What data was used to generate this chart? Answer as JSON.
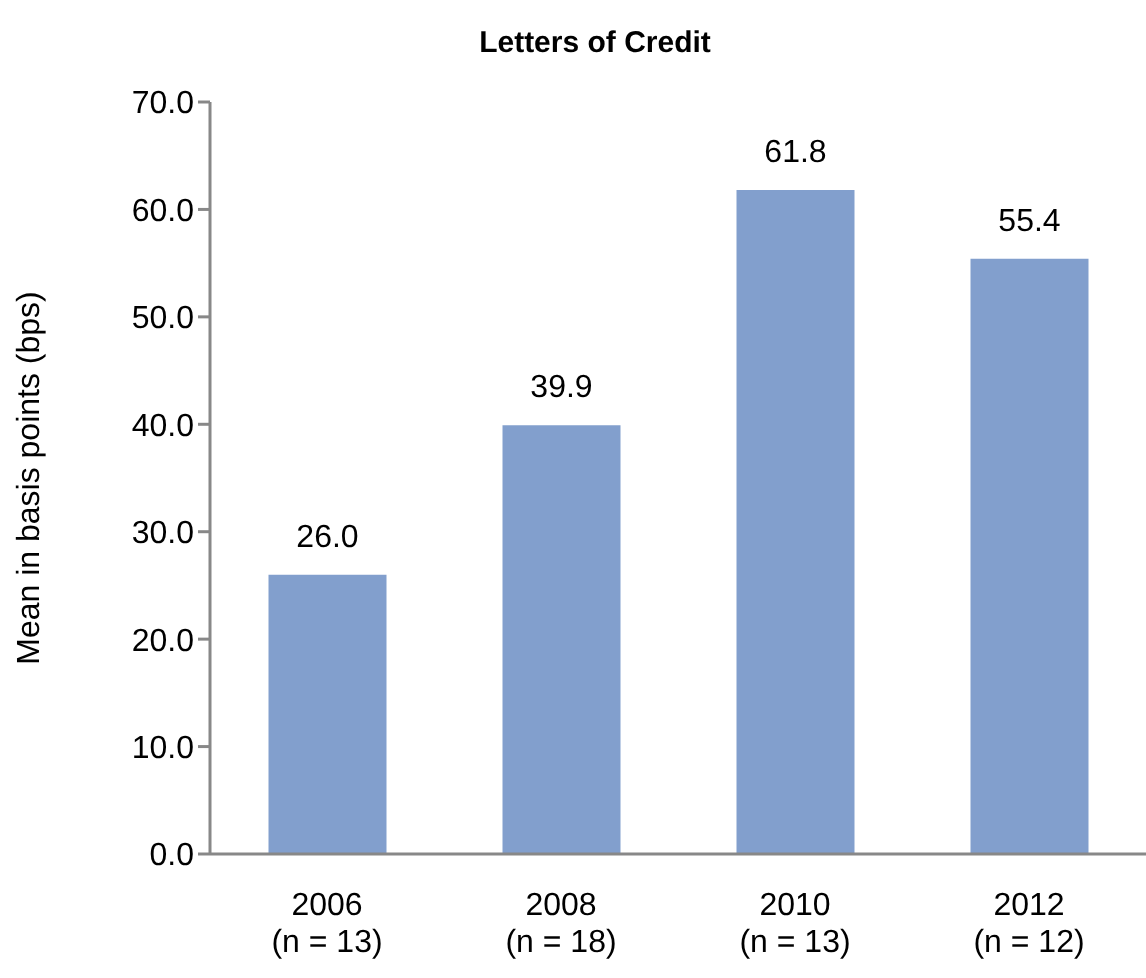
{
  "chart_data": {
    "type": "bar",
    "title": "Letters of Credit",
    "ylabel": "Mean in basis points (bps)",
    "categories": [
      "2006\n(n = 13)",
      "2008\n(n = 18)",
      "2010\n(n = 13)",
      "2012\n(n = 12)"
    ],
    "values": [
      26.0,
      39.9,
      61.8,
      55.4
    ],
    "value_labels": [
      "26.0",
      "39.9",
      "61.8",
      "55.4"
    ],
    "color": "#829fcd",
    "ylim": [
      0,
      70
    ],
    "yticks": [
      {
        "value": 0,
        "label": "0.0"
      },
      {
        "value": 10,
        "label": "10.0"
      },
      {
        "value": 20,
        "label": "20.0"
      },
      {
        "value": 30,
        "label": "30.0"
      },
      {
        "value": 40,
        "label": "40.0"
      },
      {
        "value": 50,
        "label": "50.0"
      },
      {
        "value": 60,
        "label": "60.0"
      },
      {
        "value": 70,
        "label": "70.0"
      }
    ],
    "grid": false,
    "legend": false
  }
}
